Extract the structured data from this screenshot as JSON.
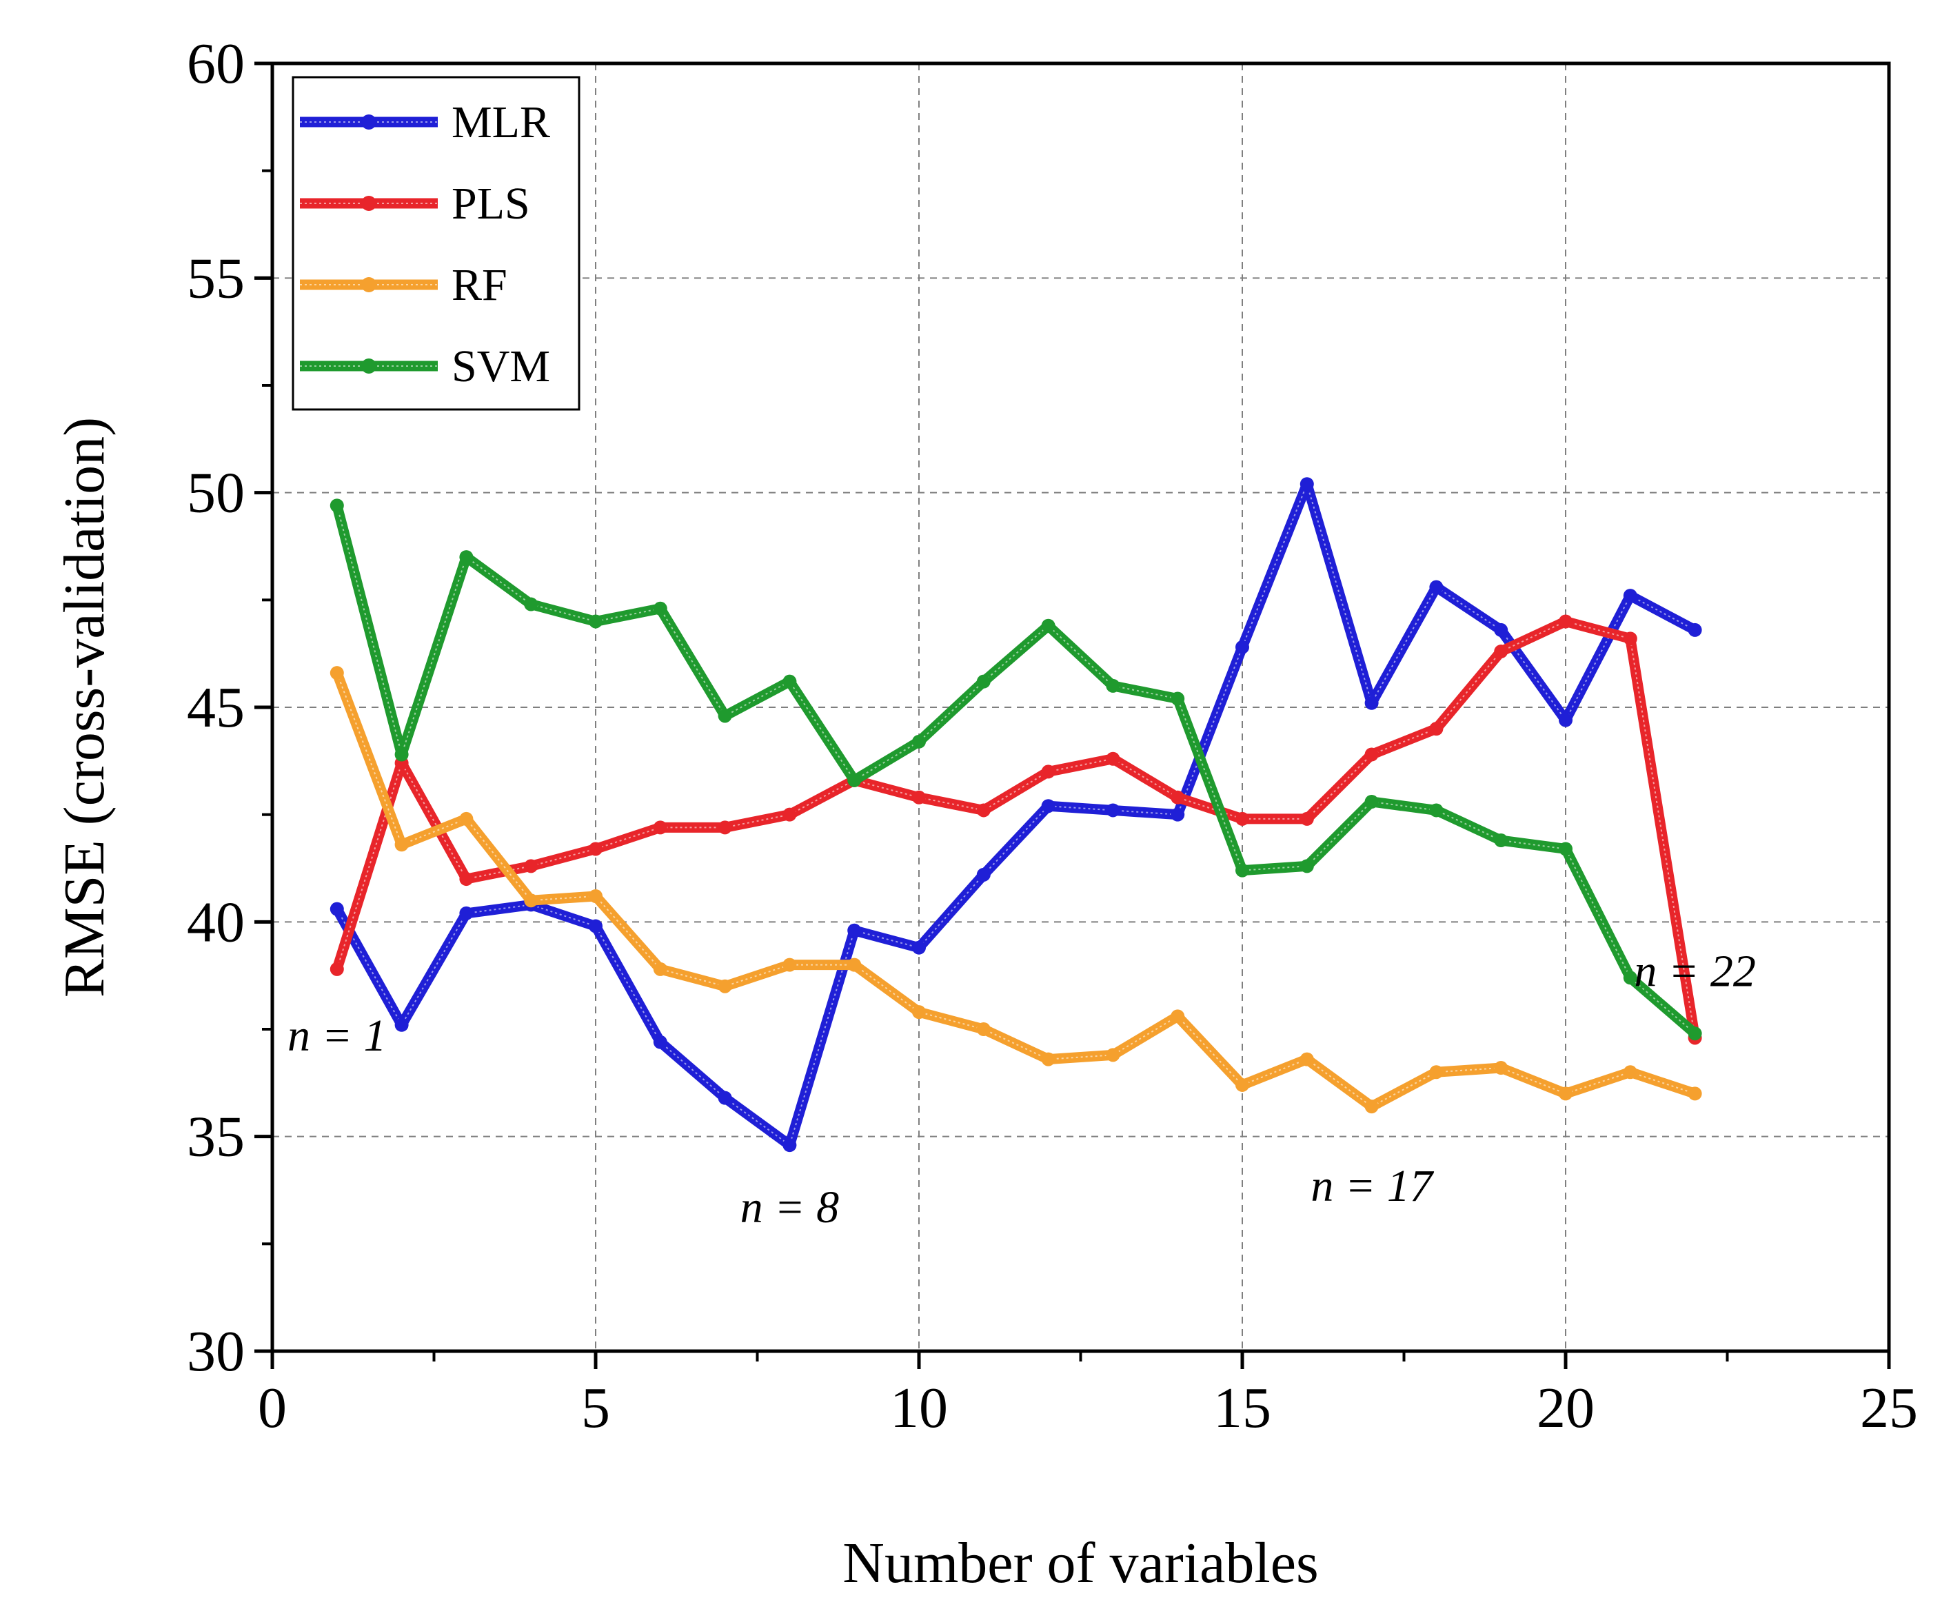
{
  "chart_data": {
    "type": "line",
    "xlabel": "Number of variables",
    "ylabel": "RMSE (cross-validation)",
    "xlim": [
      0,
      25
    ],
    "ylim": [
      30,
      60
    ],
    "xticks": [
      0,
      5,
      10,
      15,
      20,
      25
    ],
    "yticks": [
      30,
      35,
      40,
      45,
      50,
      55,
      60
    ],
    "grid": true,
    "legend_position": "top-left",
    "series": [
      {
        "name": "MLR",
        "color": "#1f1fd6",
        "x": [
          1,
          2,
          3,
          4,
          5,
          6,
          7,
          8,
          9,
          10,
          11,
          12,
          13,
          14,
          15,
          16,
          17,
          18,
          19,
          20,
          21,
          22
        ],
        "y": [
          40.3,
          37.6,
          40.2,
          40.4,
          39.9,
          37.2,
          35.9,
          34.8,
          39.8,
          39.4,
          41.1,
          42.7,
          42.6,
          42.5,
          46.4,
          50.2,
          45.1,
          47.8,
          46.8,
          44.7,
          47.6,
          46.8
        ]
      },
      {
        "name": "PLS",
        "color": "#e8252a",
        "x": [
          1,
          2,
          3,
          4,
          5,
          6,
          7,
          8,
          9,
          10,
          11,
          12,
          13,
          14,
          15,
          16,
          17,
          18,
          19,
          20,
          21,
          22
        ],
        "y": [
          38.9,
          43.7,
          41.0,
          41.3,
          41.7,
          42.2,
          42.2,
          42.5,
          43.3,
          42.9,
          42.6,
          43.5,
          43.8,
          42.9,
          42.4,
          42.4,
          43.9,
          44.5,
          46.3,
          47.0,
          46.6,
          37.3
        ]
      },
      {
        "name": "RF",
        "color": "#f5a02e",
        "x": [
          1,
          2,
          3,
          4,
          5,
          6,
          7,
          8,
          9,
          10,
          11,
          12,
          13,
          14,
          15,
          16,
          17,
          18,
          19,
          20,
          21,
          22
        ],
        "y": [
          45.8,
          41.8,
          42.4,
          40.5,
          40.6,
          38.9,
          38.5,
          39.0,
          39.0,
          37.9,
          37.5,
          36.8,
          36.9,
          37.8,
          36.2,
          36.8,
          35.7,
          36.5,
          36.6,
          36.0,
          36.5,
          36.0
        ]
      },
      {
        "name": "SVM",
        "color": "#1f9a2e",
        "x": [
          1,
          2,
          3,
          4,
          5,
          6,
          7,
          8,
          9,
          10,
          11,
          12,
          13,
          14,
          15,
          16,
          17,
          18,
          19,
          20,
          21,
          22
        ],
        "y": [
          49.7,
          43.9,
          48.5,
          47.4,
          47.0,
          47.3,
          44.8,
          45.6,
          43.3,
          44.2,
          45.6,
          46.9,
          45.5,
          45.2,
          41.2,
          41.3,
          42.8,
          42.6,
          41.9,
          41.7,
          38.7,
          37.4
        ]
      }
    ],
    "annotations": [
      {
        "text": "n = 1",
        "x": 1,
        "y": 37.0
      },
      {
        "text": "n = 8",
        "x": 8,
        "y": 33.0
      },
      {
        "text": "n = 17",
        "x": 17,
        "y": 33.5
      },
      {
        "text": "n = 22",
        "x": 22,
        "y": 38.5
      }
    ]
  }
}
